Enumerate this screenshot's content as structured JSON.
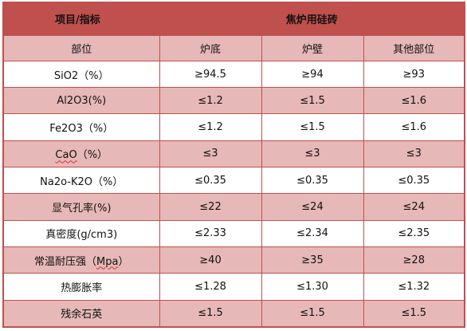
{
  "header": {
    "item_label": "项目/指标",
    "product_label": "焦炉用硅砖"
  },
  "columns": [
    "部位",
    "炉底",
    "炉壁",
    "其他部位"
  ],
  "rows": [
    {
      "label": "SiO2（%）",
      "values": [
        "≥94.5",
        "≥94",
        "≥93"
      ]
    },
    {
      "label": "Al2O3(%)",
      "values": [
        "≤1.2",
        "≤1.5",
        "≤1.6"
      ]
    },
    {
      "label": "Fe2O3（%）",
      "values": [
        "≤1.2",
        "≤1.5",
        "≤1.6"
      ]
    },
    {
      "label_prefix": "CaO",
      "label_suffix": "（%）",
      "values": [
        "≤3",
        "≤3",
        "≤3"
      ]
    },
    {
      "label": "Na2o-K2O（%）",
      "values": [
        "≤0.35",
        "≤0.35",
        "≤0.35"
      ]
    },
    {
      "label": "显气孔率(%)",
      "values": [
        "≤22",
        "≤24",
        "≤24"
      ]
    },
    {
      "label": "真密度(g/cm3)",
      "values": [
        "≤2.33",
        "≤2.34",
        "≤2.35"
      ]
    },
    {
      "label_prefix": "常温耐压强（",
      "label_spell": "Mpa",
      "label_suffix": "）",
      "values": [
        "≥40",
        "≥35",
        "≥28"
      ]
    },
    {
      "label": "热膨胀率",
      "values": [
        "≤1.28",
        "≤1.30",
        "≤1.32"
      ]
    },
    {
      "label": "残余石英",
      "values": [
        "≤1.5",
        "≤1.5",
        "≤1.5"
      ]
    }
  ]
}
